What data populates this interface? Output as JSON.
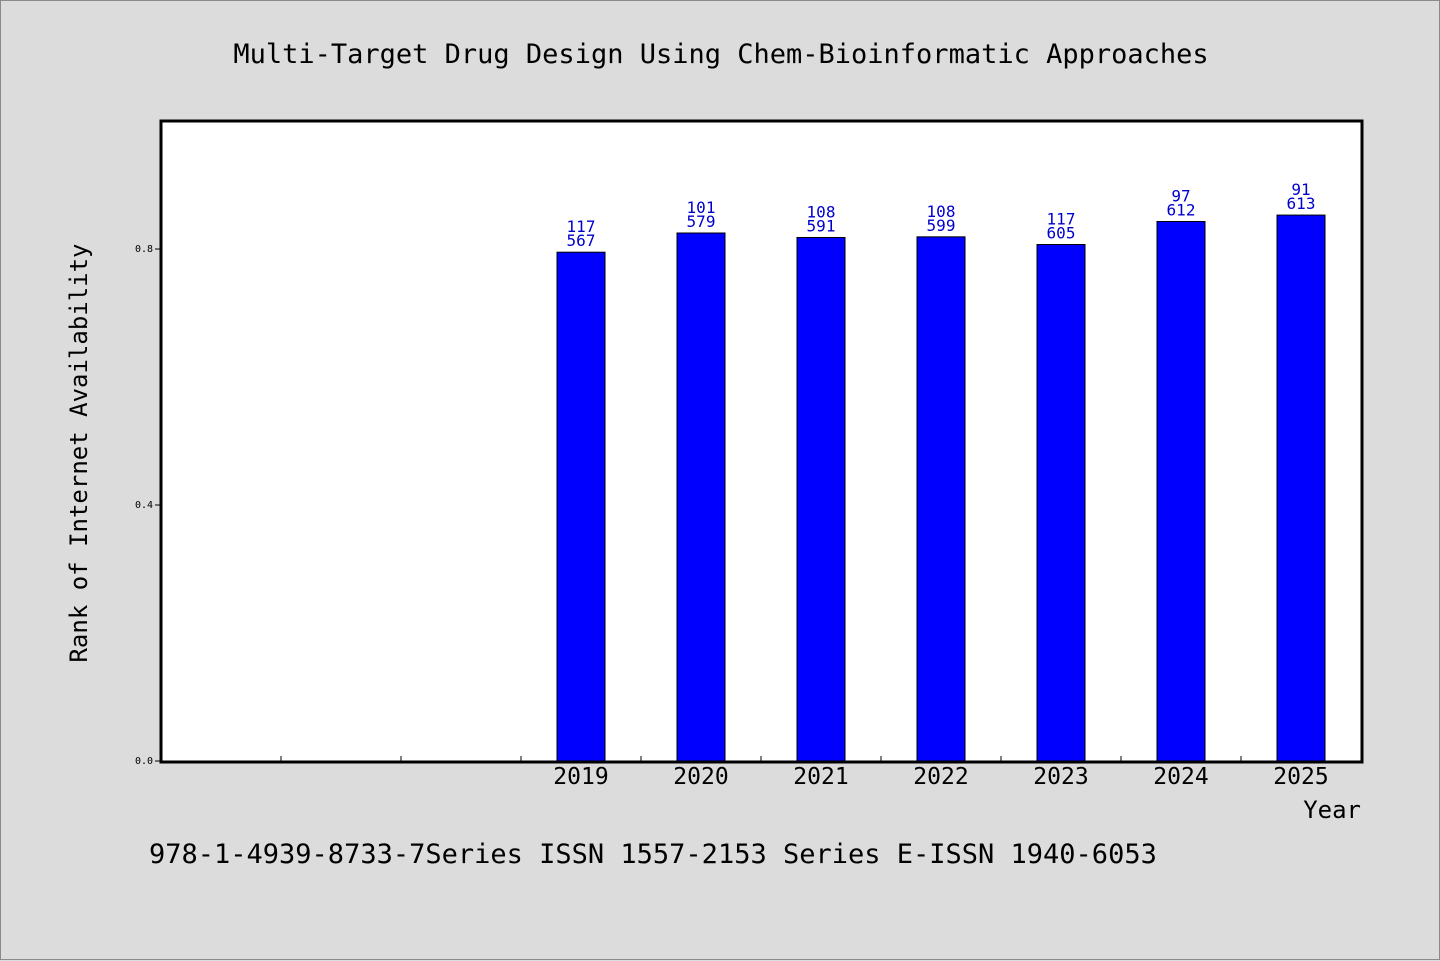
{
  "chart_data": {
    "type": "bar",
    "title": "Multi-Target Drug Design Using Chem-Bioinformatic Approaches",
    "xlabel": "Year",
    "ylabel": "Rank of Internet Availability",
    "categories": [
      "2019",
      "2020",
      "2021",
      "2022",
      "2023",
      "2024",
      "2025"
    ],
    "values": [
      0.795,
      0.825,
      0.818,
      0.819,
      0.807,
      0.843,
      0.853
    ],
    "data_labels": [
      [
        "117",
        "567"
      ],
      [
        "101",
        "579"
      ],
      [
        "108",
        "591"
      ],
      [
        "108",
        "599"
      ],
      [
        "117",
        "605"
      ],
      [
        "97",
        "612"
      ],
      [
        "91",
        "613"
      ]
    ],
    "yticks": [
      "0.0",
      "0.4",
      "0.8"
    ],
    "ytick_values": [
      0.0,
      0.4,
      0.8
    ],
    "ylim": [
      0,
      1.0
    ],
    "empty_leading_slots": 3,
    "grid": false,
    "legend": "none",
    "bar_color": "#0000ff",
    "label_color": "#0000cc"
  },
  "footer": "978-1-4939-8733-7Series ISSN 1557-2153 Series E-ISSN 1940-6053"
}
